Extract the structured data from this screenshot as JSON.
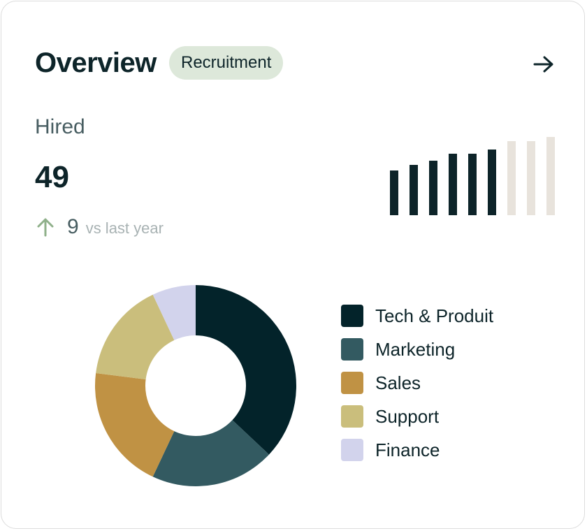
{
  "header": {
    "title": "Overview",
    "badge": "Recruitment",
    "open_icon": "arrow-right-icon"
  },
  "metric": {
    "label": "Hired",
    "value": "49",
    "delta_icon": "arrow-up-icon",
    "delta_value": "9",
    "delta_text": "vs last year",
    "delta_color": "#8fb08a"
  },
  "colors": {
    "text_primary": "#0d2429",
    "text_secondary": "#475d61",
    "badge_bg": "#dde8da",
    "bar_current": "#0d2429",
    "bar_future": "#e8e3dc"
  },
  "chart_data": [
    {
      "type": "bar",
      "description_free": true,
      "values": [
        64,
        72,
        78,
        88,
        88,
        94,
        106,
        106,
        112
      ],
      "highlighted_count": 6,
      "colors": [
        "#0d2429",
        "#e8e3dc"
      ]
    },
    {
      "type": "pie",
      "donut": true,
      "categories": [
        "Tech & Produit",
        "Marketing",
        "Sales",
        "Support",
        "Finance"
      ],
      "values": [
        37,
        20,
        20,
        16,
        7
      ],
      "colors": [
        "#03232a",
        "#335a61",
        "#c09244",
        "#cabe7c",
        "#d2d3ec"
      ],
      "legend": "right"
    }
  ]
}
